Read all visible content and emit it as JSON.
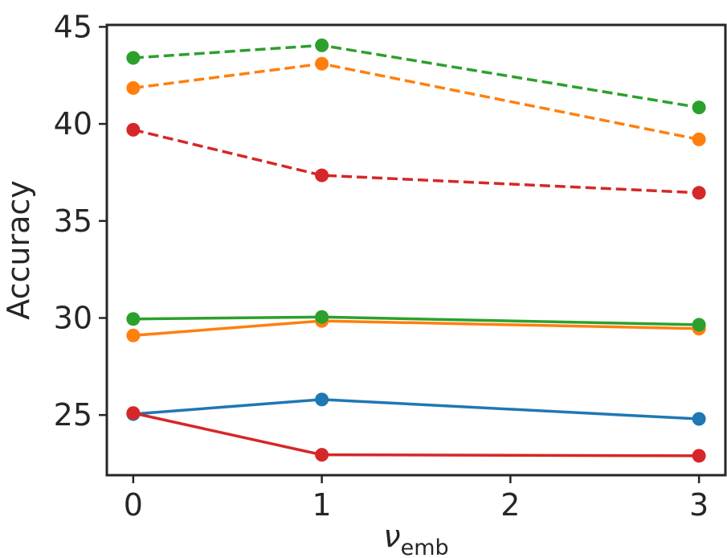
{
  "chart_data": {
    "type": "line",
    "title": "",
    "xlabel": "ν",
    "xlabel_subscript": "emb",
    "ylabel": "Accuracy",
    "x_ticks": [
      0,
      1,
      2,
      3
    ],
    "x_tick_labels": [
      "0",
      "1",
      "2",
      "3"
    ],
    "y_ticks": [
      25,
      30,
      35,
      40,
      45
    ],
    "y_tick_labels": [
      "25",
      "30",
      "35",
      "40",
      "45"
    ],
    "xlim": [
      -0.14,
      3.14
    ],
    "ylim": [
      21.9,
      45.1
    ],
    "grid": false,
    "legend": "none",
    "series": [
      {
        "name": "blue-solid",
        "color": "#1f77b4",
        "linestyle": "solid",
        "x": [
          0,
          1,
          3
        ],
        "values": [
          25.05,
          25.8,
          24.8
        ]
      },
      {
        "name": "red-solid",
        "color": "#d62728",
        "linestyle": "solid",
        "x": [
          0,
          1,
          3
        ],
        "values": [
          25.1,
          22.95,
          22.9
        ]
      },
      {
        "name": "orange-solid",
        "color": "#ff7f0e",
        "linestyle": "solid",
        "x": [
          0,
          1,
          3
        ],
        "values": [
          29.1,
          29.85,
          29.45
        ]
      },
      {
        "name": "green-solid",
        "color": "#2ca02c",
        "linestyle": "solid",
        "x": [
          0,
          1,
          3
        ],
        "values": [
          29.95,
          30.05,
          29.65
        ]
      },
      {
        "name": "red-dashed",
        "color": "#d62728",
        "linestyle": "dashed",
        "x": [
          0,
          1,
          3
        ],
        "values": [
          39.7,
          37.35,
          36.45
        ]
      },
      {
        "name": "orange-dashed",
        "color": "#ff7f0e",
        "linestyle": "dashed",
        "x": [
          0,
          1,
          3
        ],
        "values": [
          41.85,
          43.1,
          39.2
        ]
      },
      {
        "name": "green-dashed",
        "color": "#2ca02c",
        "linestyle": "dashed",
        "x": [
          0,
          1,
          3
        ],
        "values": [
          43.4,
          44.05,
          40.85
        ]
      }
    ]
  }
}
